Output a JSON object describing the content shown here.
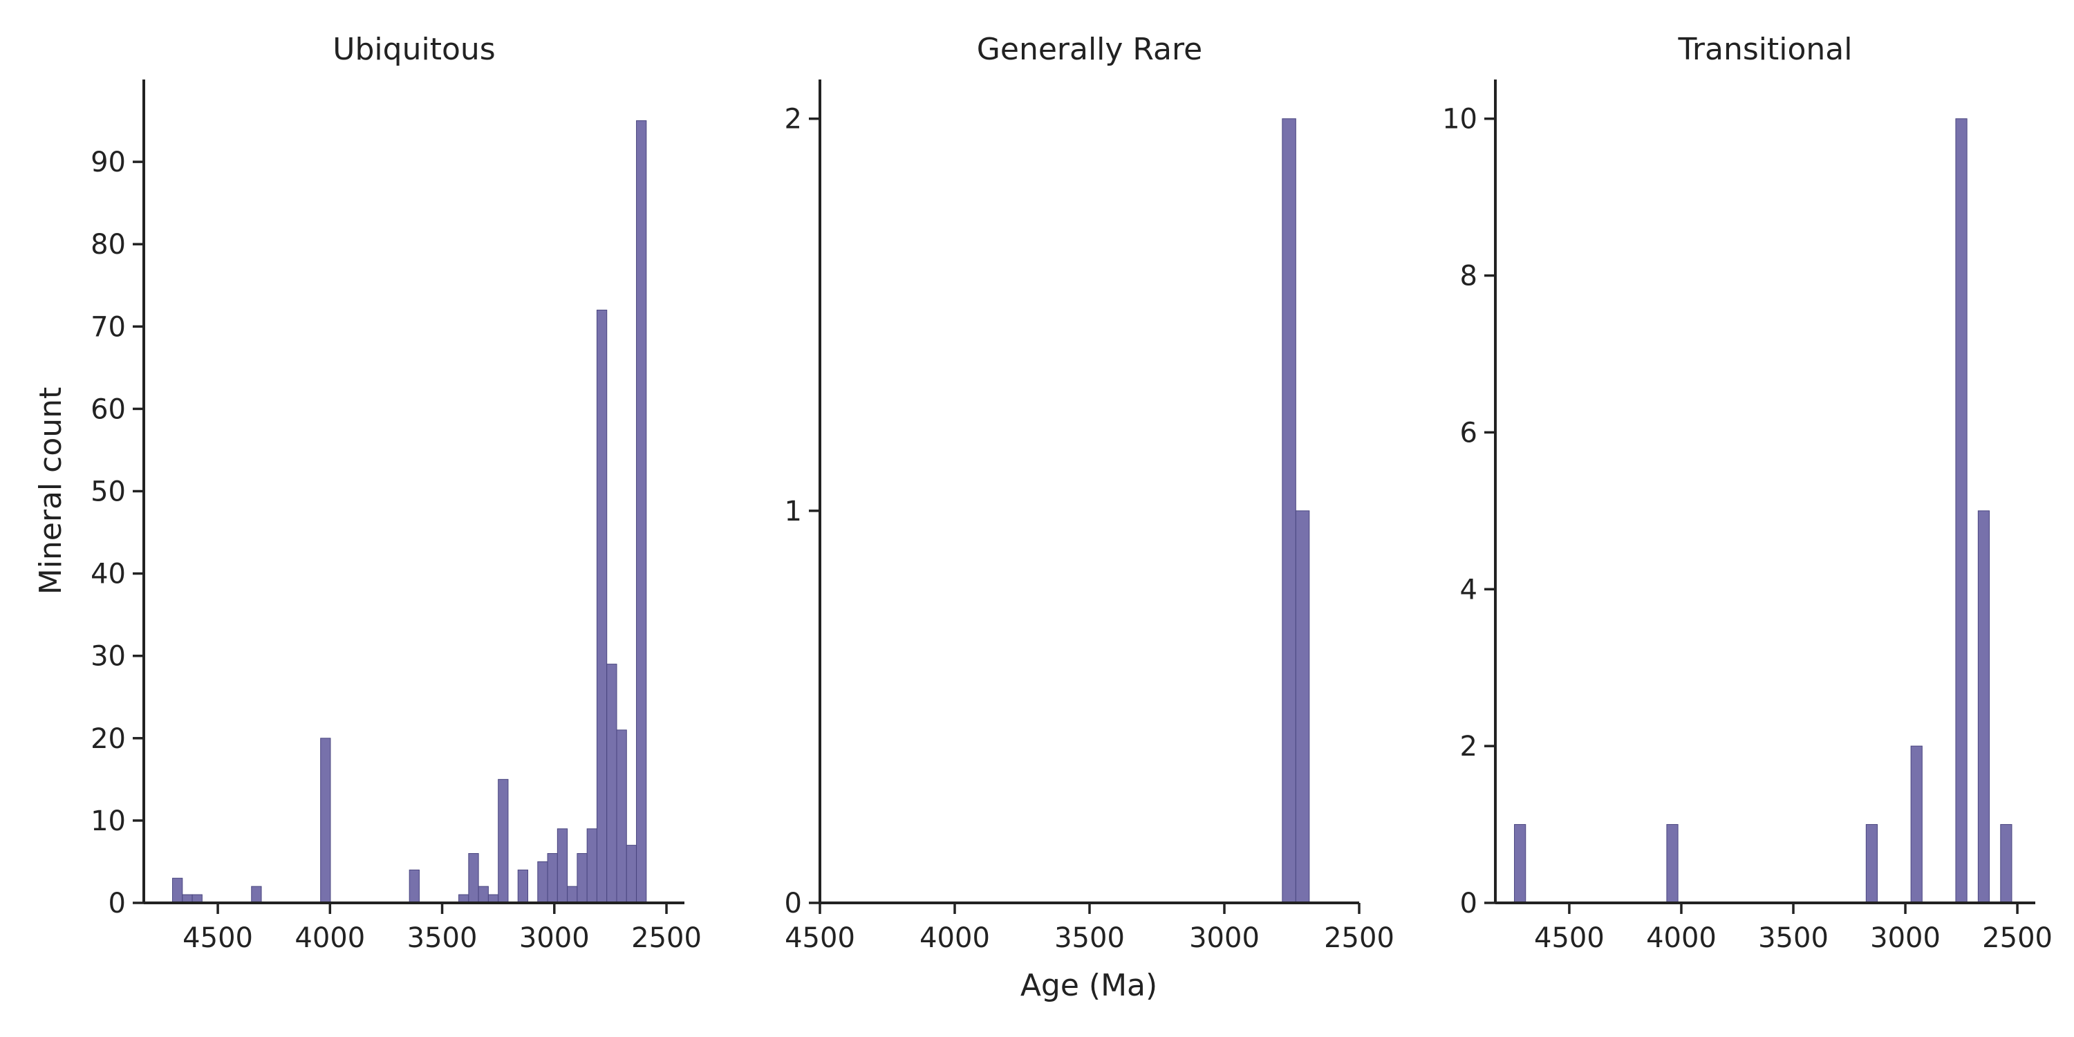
{
  "figure": {
    "ylabel": "Mineral count",
    "xlabel": "Age (Ma)"
  },
  "chart_data": [
    {
      "type": "bar",
      "title": "Ubiquitous",
      "xlabel": "",
      "ylabel": "Mineral count",
      "x_axis_reversed": true,
      "xlim": [
        4830,
        2420
      ],
      "ylim": [
        0,
        100
      ],
      "xticks": [
        4500,
        4000,
        3500,
        3000,
        2500
      ],
      "yticks": [
        0,
        10,
        20,
        30,
        40,
        50,
        60,
        70,
        80,
        90
      ],
      "bar_color": "#7771ab",
      "bin_width": 44,
      "bins": [
        {
          "x": 4680,
          "value": 3
        },
        {
          "x": 4636,
          "value": 1
        },
        {
          "x": 4592,
          "value": 1
        },
        {
          "x": 4328,
          "value": 2
        },
        {
          "x": 4020,
          "value": 20
        },
        {
          "x": 3624,
          "value": 4
        },
        {
          "x": 3404,
          "value": 1
        },
        {
          "x": 3360,
          "value": 6
        },
        {
          "x": 3316,
          "value": 2
        },
        {
          "x": 3272,
          "value": 1
        },
        {
          "x": 3228,
          "value": 15
        },
        {
          "x": 3140,
          "value": 4
        },
        {
          "x": 3052,
          "value": 5
        },
        {
          "x": 3008,
          "value": 6
        },
        {
          "x": 2964,
          "value": 9
        },
        {
          "x": 2920,
          "value": 2
        },
        {
          "x": 2876,
          "value": 6
        },
        {
          "x": 2832,
          "value": 9
        },
        {
          "x": 2788,
          "value": 72
        },
        {
          "x": 2744,
          "value": 29
        },
        {
          "x": 2700,
          "value": 21
        },
        {
          "x": 2656,
          "value": 7
        },
        {
          "x": 2612,
          "value": 95
        }
      ]
    },
    {
      "type": "bar",
      "title": "Generally Rare",
      "xlabel": "Age (Ma)",
      "ylabel": "",
      "x_axis_reversed": true,
      "xlim": [
        4500,
        2500
      ],
      "ylim": [
        0,
        2.1
      ],
      "xticks": [
        4500,
        4000,
        3500,
        3000,
        2500
      ],
      "yticks": [
        0,
        1,
        2
      ],
      "bar_color": "#7771ab",
      "bin_width": 50,
      "bins": [
        {
          "x": 2760,
          "value": 2
        },
        {
          "x": 2710,
          "value": 1
        }
      ]
    },
    {
      "type": "bar",
      "title": "Transitional",
      "xlabel": "",
      "ylabel": "",
      "x_axis_reversed": true,
      "xlim": [
        4830,
        2420
      ],
      "ylim": [
        0,
        10.5
      ],
      "xticks": [
        4500,
        4000,
        3500,
        3000,
        2500
      ],
      "yticks": [
        0,
        2,
        4,
        6,
        8,
        10
      ],
      "bar_color": "#7771ab",
      "bin_width": 50,
      "bins": [
        {
          "x": 4720,
          "value": 1
        },
        {
          "x": 4040,
          "value": 1
        },
        {
          "x": 3150,
          "value": 1
        },
        {
          "x": 2950,
          "value": 2
        },
        {
          "x": 2750,
          "value": 10
        },
        {
          "x": 2650,
          "value": 5
        },
        {
          "x": 2550,
          "value": 1
        }
      ]
    }
  ]
}
